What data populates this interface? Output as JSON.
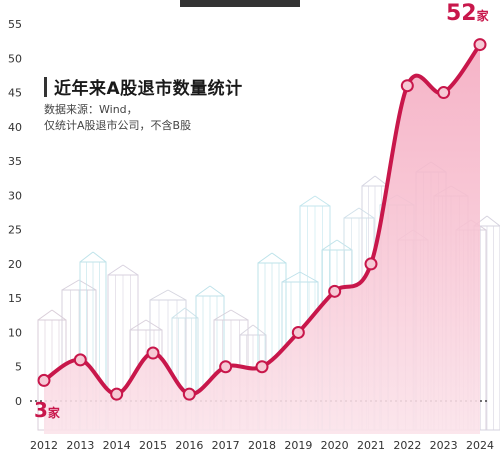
{
  "chart_data": {
    "type": "area",
    "title": "近年来A股退市数量统计",
    "source_note": "数据来源：Wind，",
    "scope_note": "仅统计A股退市公司，不含B股",
    "categories": [
      "2012",
      "2013",
      "2014",
      "2015",
      "2016",
      "2017",
      "2018",
      "2019",
      "2020",
      "2021",
      "2022",
      "2023",
      "2024"
    ],
    "series": [
      {
        "values": [
          3,
          6,
          1,
          7,
          1,
          5,
          5,
          10,
          16,
          20,
          46,
          45,
          52
        ]
      }
    ],
    "y_ticks": [
      0,
      5,
      10,
      15,
      20,
      25,
      30,
      35,
      40,
      45,
      50,
      55
    ],
    "ylim": [
      0,
      55
    ],
    "callouts": {
      "end": {
        "value": "52",
        "unit": "家"
      },
      "start": {
        "value": "3",
        "unit": "家"
      }
    },
    "colors": {
      "line": "#c8174b",
      "area": "#f4b3c6",
      "point_fill": "#f6c9d5",
      "zero_line": "#222222"
    }
  }
}
